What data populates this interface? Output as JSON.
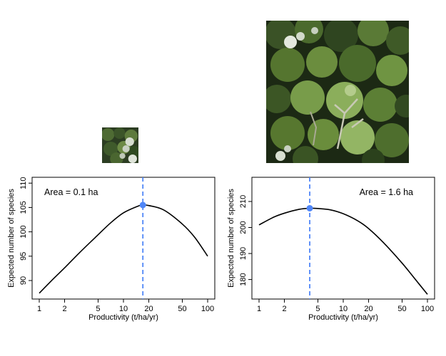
{
  "photos": [
    {
      "name": "canopy-photo-small"
    },
    {
      "name": "canopy-photo-large"
    }
  ],
  "colors": {
    "curve": "#000000",
    "optimum": "#4f86f7",
    "canopy_dark": "#1f2d17",
    "canopy_mid": "#4f6b2f",
    "canopy_light": "#8fb06a",
    "canopy_pale": "#d9e2cf"
  },
  "chart_data": [
    {
      "type": "line",
      "annotation": "Area = 0.1 ha",
      "xlabel": "Productivity (t/ha/yr)",
      "ylabel": "Expected number of species",
      "xscale": "log",
      "xlim": [
        1,
        100
      ],
      "ylim": [
        86.2,
        111.2
      ],
      "xticks": [
        1,
        2,
        5,
        10,
        20,
        50,
        100
      ],
      "xtick_labels": [
        "1",
        "2",
        "5",
        "10",
        "20",
        "50",
        "100"
      ],
      "yticks": [
        90,
        95,
        100,
        105,
        110
      ],
      "ytick_labels": [
        "90",
        "95",
        "100",
        "105",
        "110"
      ],
      "series": [
        {
          "x": [
            1,
            1.5,
            2,
            3,
            5,
            7,
            10,
            15,
            17,
            20,
            30,
            50,
            70,
            100
          ],
          "values": [
            87.4,
            90.5,
            92.6,
            95.7,
            99.4,
            101.8,
            103.9,
            105.3,
            105.5,
            105.4,
            104.5,
            101.6,
            98.9,
            95.0
          ]
        }
      ],
      "optimum": {
        "x": 17,
        "y": 105.5
      }
    },
    {
      "type": "line",
      "annotation": "Area = 1.6 ha",
      "xlabel": "Productivity (t/ha/yr)",
      "ylabel": "Expected number of species",
      "xscale": "log",
      "xlim": [
        1,
        100
      ],
      "ylim": [
        172.5,
        219.3
      ],
      "xticks": [
        1,
        2,
        5,
        10,
        20,
        50,
        100
      ],
      "xtick_labels": [
        "1",
        "2",
        "5",
        "10",
        "20",
        "50",
        "100"
      ],
      "yticks": [
        180,
        190,
        200,
        210
      ],
      "ytick_labels": [
        "180",
        "190",
        "200",
        "210"
      ],
      "series": [
        {
          "x": [
            1,
            1.5,
            2,
            3,
            4,
            5,
            7,
            10,
            15,
            20,
            30,
            50,
            70,
            100
          ],
          "values": [
            201.0,
            204.0,
            205.5,
            207.0,
            207.4,
            207.3,
            206.8,
            205.3,
            202.5,
            199.6,
            194.2,
            186.3,
            180.5,
            174.3
          ]
        }
      ],
      "optimum": {
        "x": 4,
        "y": 207.4
      }
    }
  ]
}
